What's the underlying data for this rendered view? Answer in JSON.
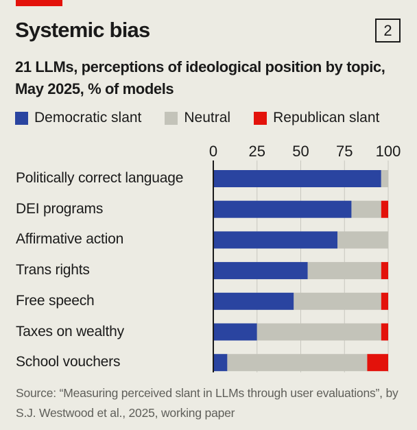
{
  "header": {
    "title": "Systemic bias",
    "badge": "2",
    "subtitle": "21 LLMs, perceptions of ideological position by topic, May 2025, % of models"
  },
  "legend": [
    {
      "label": "Democratic slant",
      "color": "#2a44a0"
    },
    {
      "label": "Neutral",
      "color": "#c3c3b9"
    },
    {
      "label": "Republican slant",
      "color": "#e3120b"
    }
  ],
  "colors": {
    "accent_bar": "#e3120b",
    "background": "#ecebe3",
    "gridline": "#c8c7bf",
    "axis": "#1a1a1a"
  },
  "chart_data": {
    "type": "bar",
    "orientation": "horizontal",
    "stacked": true,
    "title": "Systemic bias",
    "subtitle": "21 LLMs, perceptions of ideological position by topic, May 2025, % of models",
    "xlabel": "",
    "ylabel": "",
    "xlim": [
      0,
      100
    ],
    "xticks": [
      0,
      25,
      50,
      75,
      100
    ],
    "xtick_labels": [
      "0",
      "25",
      "50",
      "75",
      "100"
    ],
    "grid": true,
    "legend_position": "top",
    "categories": [
      "Politically correct language",
      "DEI programs",
      "Affirmative action",
      "Trans rights",
      "Free speech",
      "Taxes on wealthy",
      "School vouchers"
    ],
    "series": [
      {
        "name": "Democratic slant",
        "color": "#2a44a0",
        "values": [
          96,
          79,
          71,
          54,
          46,
          25,
          8
        ]
      },
      {
        "name": "Neutral",
        "color": "#c3c3b9",
        "values": [
          4,
          17,
          29,
          42,
          50,
          71,
          80
        ]
      },
      {
        "name": "Republican slant",
        "color": "#e3120b",
        "values": [
          0,
          4,
          0,
          4,
          4,
          4,
          12
        ]
      }
    ]
  },
  "source": "Source: “Measuring perceived slant in LLMs through user evaluations”, by S.J. Westwood et al., 2025, working paper"
}
